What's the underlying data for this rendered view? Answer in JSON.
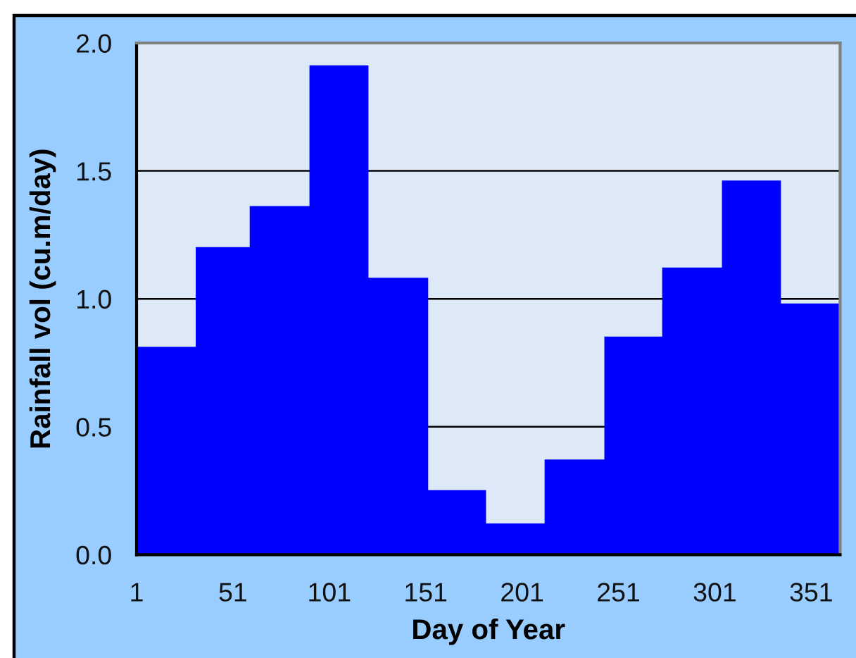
{
  "chart_data": {
    "type": "histogram",
    "xlabel": "Day of Year",
    "ylabel": "Rainfall vol (cu.m/day)",
    "bins": [
      1,
      32,
      60,
      91,
      121,
      152,
      182,
      213,
      244,
      274,
      305,
      335,
      366
    ],
    "values": [
      0.81,
      1.2,
      1.36,
      1.91,
      1.08,
      0.25,
      0.12,
      0.37,
      0.85,
      1.12,
      1.46,
      0.98
    ],
    "color": "#0000ff",
    "xlim": [
      1,
      366
    ],
    "xticks": [
      1,
      51,
      101,
      151,
      201,
      251,
      301,
      351
    ],
    "ylim": [
      0,
      2
    ],
    "yticks": [
      {
        "value": 0,
        "label": "0.0"
      },
      {
        "value": 0.5,
        "label": "0.5"
      },
      {
        "value": 1,
        "label": "1.0"
      },
      {
        "value": 1.5,
        "label": "1.5"
      },
      {
        "value": 2,
        "label": "2.0"
      }
    ],
    "grid": "y"
  }
}
